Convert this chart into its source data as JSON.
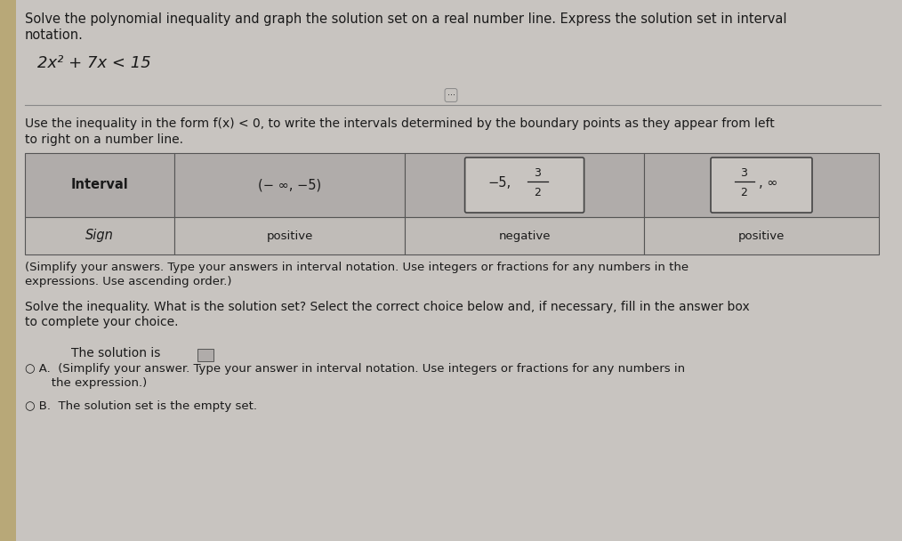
{
  "bg_color": "#c8c4c0",
  "left_strip_color": "#b8a878",
  "text_color": "#1a1a1a",
  "table_header_bg": "#b0acaa",
  "table_row_bg": "#c0bcb8",
  "table_border_color": "#555555",
  "box_bg": "#c8c4c0",
  "box_border": "#444444",
  "line_color": "#888888",
  "title_text1": "Solve the polynomial inequality and graph the solution set on a real number line. Express the solution set in interval",
  "title_text2": "notation.",
  "equation_text": "2x² + 7x < 15",
  "instr_text1": "Use the inequality in the form f(x) < 0, to write the intervals determined by the boundary points as they appear from left",
  "instr_text2": "to right on a number line.",
  "col0_header": "Interval",
  "col1_interval": "(− ∞, −5)",
  "col2_minus5": "−5,",
  "col2_num": "3",
  "col2_den": "2",
  "col3_num": "3",
  "col3_den": "2",
  "col3_inf": "∞",
  "sign_label": "Sign",
  "sign1": "positive",
  "sign2": "negative",
  "sign3": "positive",
  "simplify_line1": "(Simplify your answers. Type your answers in interval notation. Use integers or fractions for any numbers in the",
  "simplify_line2": "expressions. Use ascending order.)",
  "solve_line1": "Solve the inequality. What is the solution set? Select the correct choice below and, if necessary, fill in the answer box",
  "solve_line2": "to complete your choice.",
  "sol_label": "The solution is",
  "choiceA_line1": "○ A.  (Simplify your answer. Type your answer in interval notation. Use integers or fractions for any numbers in",
  "choiceA_line2": "       the expression.)",
  "choiceB": "○ B.  The solution set is the empty set.",
  "font_title": 10.5,
  "font_eq": 13,
  "font_body": 10,
  "font_table": 10.5,
  "font_small": 9
}
